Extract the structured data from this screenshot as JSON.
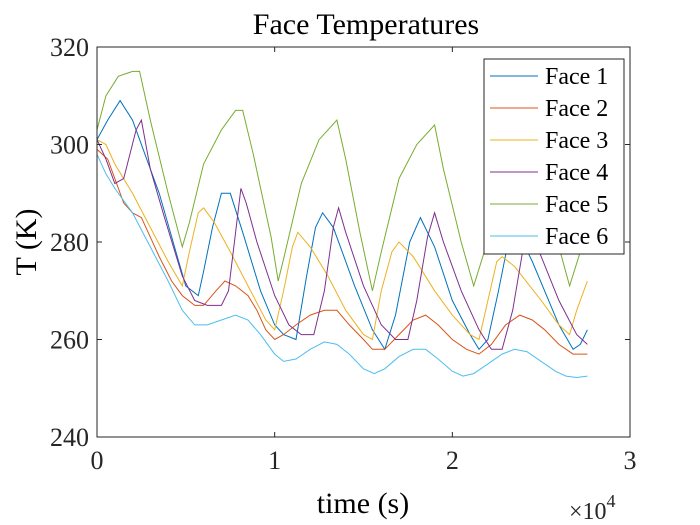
{
  "chart_data": {
    "type": "line",
    "title": "Face Temperatures",
    "xlabel": "time (s)",
    "ylabel": "T (K)",
    "xlim": [
      0,
      3
    ],
    "ylim": [
      240,
      320
    ],
    "x_exponent_label": "×10",
    "x_exponent_power": "4",
    "xticks": [
      0,
      1,
      2,
      3
    ],
    "yticks": [
      240,
      260,
      280,
      300,
      320
    ],
    "xtick_labels": [
      "0",
      "1",
      "2",
      "3"
    ],
    "ytick_labels": [
      "240",
      "260",
      "280",
      "300",
      "320"
    ],
    "legend_position": "top-right",
    "series": [
      {
        "name": "Face 1",
        "color": "#0072BD",
        "points": [
          [
            0,
            301
          ],
          [
            0.06,
            305
          ],
          [
            0.13,
            309
          ],
          [
            0.2,
            305
          ],
          [
            0.35,
            290
          ],
          [
            0.46,
            276
          ],
          [
            0.5,
            271
          ],
          [
            0.57,
            269
          ],
          [
            0.6,
            274
          ],
          [
            0.65,
            283
          ],
          [
            0.7,
            290
          ],
          [
            0.75,
            290
          ],
          [
            0.82,
            282
          ],
          [
            0.92,
            270
          ],
          [
            1.0,
            263
          ],
          [
            1.05,
            261
          ],
          [
            1.12,
            260
          ],
          [
            1.18,
            273
          ],
          [
            1.23,
            283
          ],
          [
            1.27,
            286
          ],
          [
            1.33,
            283
          ],
          [
            1.45,
            271
          ],
          [
            1.55,
            262
          ],
          [
            1.62,
            258
          ],
          [
            1.68,
            265
          ],
          [
            1.76,
            280
          ],
          [
            1.82,
            285
          ],
          [
            1.9,
            279
          ],
          [
            2.0,
            268
          ],
          [
            2.1,
            261
          ],
          [
            2.15,
            258
          ],
          [
            2.2,
            260
          ],
          [
            2.26,
            270
          ],
          [
            2.32,
            281
          ],
          [
            2.37,
            282
          ],
          [
            2.45,
            276
          ],
          [
            2.6,
            263
          ],
          [
            2.68,
            258
          ],
          [
            2.72,
            259
          ],
          [
            2.76,
            262
          ]
        ]
      },
      {
        "name": "Face 2",
        "color": "#D95319",
        "points": [
          [
            0,
            299
          ],
          [
            0.06,
            297
          ],
          [
            0.1,
            293
          ],
          [
            0.15,
            288
          ],
          [
            0.2,
            286
          ],
          [
            0.25,
            285
          ],
          [
            0.3,
            281
          ],
          [
            0.35,
            277
          ],
          [
            0.42,
            272
          ],
          [
            0.48,
            269
          ],
          [
            0.55,
            267
          ],
          [
            0.6,
            267
          ],
          [
            0.67,
            270
          ],
          [
            0.72,
            272
          ],
          [
            0.78,
            271
          ],
          [
            0.85,
            269
          ],
          [
            0.9,
            266
          ],
          [
            0.95,
            262
          ],
          [
            1.0,
            260
          ],
          [
            1.05,
            261
          ],
          [
            1.12,
            263
          ],
          [
            1.2,
            265
          ],
          [
            1.28,
            266
          ],
          [
            1.35,
            266
          ],
          [
            1.42,
            263
          ],
          [
            1.5,
            260
          ],
          [
            1.55,
            258
          ],
          [
            1.62,
            258
          ],
          [
            1.7,
            261
          ],
          [
            1.78,
            264
          ],
          [
            1.85,
            265
          ],
          [
            1.92,
            263
          ],
          [
            2.0,
            260
          ],
          [
            2.08,
            258
          ],
          [
            2.15,
            257
          ],
          [
            2.22,
            259
          ],
          [
            2.3,
            263
          ],
          [
            2.38,
            265
          ],
          [
            2.45,
            264
          ],
          [
            2.52,
            262
          ],
          [
            2.6,
            259
          ],
          [
            2.68,
            257
          ],
          [
            2.76,
            257
          ]
        ]
      },
      {
        "name": "Face 3",
        "color": "#EDB120",
        "points": [
          [
            0,
            301
          ],
          [
            0.05,
            300
          ],
          [
            0.1,
            296
          ],
          [
            0.2,
            290
          ],
          [
            0.3,
            283
          ],
          [
            0.4,
            276
          ],
          [
            0.48,
            271
          ],
          [
            0.52,
            278
          ],
          [
            0.57,
            286
          ],
          [
            0.6,
            287
          ],
          [
            0.66,
            284
          ],
          [
            0.75,
            278
          ],
          [
            0.85,
            271
          ],
          [
            0.95,
            264
          ],
          [
            1.0,
            262
          ],
          [
            1.05,
            270
          ],
          [
            1.1,
            279
          ],
          [
            1.13,
            282
          ],
          [
            1.2,
            279
          ],
          [
            1.3,
            273
          ],
          [
            1.4,
            266
          ],
          [
            1.5,
            261
          ],
          [
            1.55,
            260
          ],
          [
            1.6,
            270
          ],
          [
            1.66,
            278
          ],
          [
            1.7,
            280
          ],
          [
            1.78,
            277
          ],
          [
            1.9,
            270
          ],
          [
            2.0,
            265
          ],
          [
            2.1,
            261
          ],
          [
            2.15,
            260
          ],
          [
            2.2,
            268
          ],
          [
            2.25,
            276
          ],
          [
            2.28,
            277
          ],
          [
            2.35,
            275
          ],
          [
            2.5,
            268
          ],
          [
            2.6,
            263
          ],
          [
            2.66,
            261
          ],
          [
            2.7,
            266
          ],
          [
            2.76,
            272
          ]
        ]
      },
      {
        "name": "Face 4",
        "color": "#7E2F8E",
        "points": [
          [
            0,
            301
          ],
          [
            0.05,
            297
          ],
          [
            0.1,
            292
          ],
          [
            0.15,
            293
          ],
          [
            0.22,
            303
          ],
          [
            0.25,
            305
          ],
          [
            0.3,
            295
          ],
          [
            0.38,
            285
          ],
          [
            0.48,
            273
          ],
          [
            0.55,
            268
          ],
          [
            0.62,
            267
          ],
          [
            0.7,
            267
          ],
          [
            0.74,
            270
          ],
          [
            0.78,
            282
          ],
          [
            0.81,
            291
          ],
          [
            0.84,
            288
          ],
          [
            0.9,
            280
          ],
          [
            1.0,
            269
          ],
          [
            1.08,
            263
          ],
          [
            1.15,
            261
          ],
          [
            1.22,
            261
          ],
          [
            1.28,
            270
          ],
          [
            1.33,
            283
          ],
          [
            1.36,
            287
          ],
          [
            1.4,
            282
          ],
          [
            1.5,
            271
          ],
          [
            1.6,
            263
          ],
          [
            1.68,
            260
          ],
          [
            1.75,
            260
          ],
          [
            1.8,
            268
          ],
          [
            1.86,
            281
          ],
          [
            1.9,
            286
          ],
          [
            1.95,
            280
          ],
          [
            2.05,
            270
          ],
          [
            2.15,
            262
          ],
          [
            2.22,
            258
          ],
          [
            2.28,
            258
          ],
          [
            2.34,
            266
          ],
          [
            2.4,
            279
          ],
          [
            2.43,
            283
          ],
          [
            2.5,
            277
          ],
          [
            2.6,
            268
          ],
          [
            2.7,
            261
          ],
          [
            2.76,
            259
          ]
        ]
      },
      {
        "name": "Face 5",
        "color": "#77AC30",
        "points": [
          [
            0,
            303
          ],
          [
            0.05,
            310
          ],
          [
            0.12,
            314
          ],
          [
            0.2,
            315
          ],
          [
            0.24,
            315
          ],
          [
            0.3,
            305
          ],
          [
            0.4,
            290
          ],
          [
            0.48,
            279
          ],
          [
            0.52,
            284
          ],
          [
            0.6,
            296
          ],
          [
            0.7,
            303
          ],
          [
            0.78,
            307
          ],
          [
            0.82,
            307
          ],
          [
            0.88,
            298
          ],
          [
            0.98,
            281
          ],
          [
            1.02,
            272
          ],
          [
            1.06,
            278
          ],
          [
            1.15,
            292
          ],
          [
            1.25,
            301
          ],
          [
            1.35,
            305
          ],
          [
            1.4,
            297
          ],
          [
            1.48,
            282
          ],
          [
            1.55,
            270
          ],
          [
            1.6,
            278
          ],
          [
            1.7,
            293
          ],
          [
            1.8,
            300
          ],
          [
            1.9,
            304
          ],
          [
            1.95,
            295
          ],
          [
            2.05,
            280
          ],
          [
            2.12,
            271
          ],
          [
            2.18,
            278
          ],
          [
            2.28,
            291
          ],
          [
            2.38,
            297
          ],
          [
            2.45,
            299
          ],
          [
            2.52,
            291
          ],
          [
            2.6,
            279
          ],
          [
            2.66,
            271
          ],
          [
            2.72,
            278
          ],
          [
            2.76,
            281
          ]
        ]
      },
      {
        "name": "Face 6",
        "color": "#4DBEEE",
        "points": [
          [
            0,
            298
          ],
          [
            0.05,
            294
          ],
          [
            0.1,
            291
          ],
          [
            0.2,
            286
          ],
          [
            0.3,
            279
          ],
          [
            0.4,
            272
          ],
          [
            0.48,
            266
          ],
          [
            0.55,
            263
          ],
          [
            0.62,
            263
          ],
          [
            0.7,
            264
          ],
          [
            0.78,
            265
          ],
          [
            0.85,
            264
          ],
          [
            0.92,
            261
          ],
          [
            1.0,
            257
          ],
          [
            1.05,
            255.5
          ],
          [
            1.12,
            256
          ],
          [
            1.2,
            258
          ],
          [
            1.28,
            259.5
          ],
          [
            1.35,
            259
          ],
          [
            1.42,
            257
          ],
          [
            1.5,
            254
          ],
          [
            1.56,
            253
          ],
          [
            1.62,
            254
          ],
          [
            1.7,
            256.5
          ],
          [
            1.78,
            258
          ],
          [
            1.85,
            258
          ],
          [
            1.92,
            256
          ],
          [
            2.0,
            253.5
          ],
          [
            2.06,
            252.5
          ],
          [
            2.12,
            253
          ],
          [
            2.2,
            255
          ],
          [
            2.28,
            257
          ],
          [
            2.35,
            258
          ],
          [
            2.42,
            257.5
          ],
          [
            2.5,
            255.5
          ],
          [
            2.58,
            253.5
          ],
          [
            2.64,
            252.5
          ],
          [
            2.7,
            252.2
          ],
          [
            2.76,
            252.5
          ]
        ]
      }
    ]
  }
}
